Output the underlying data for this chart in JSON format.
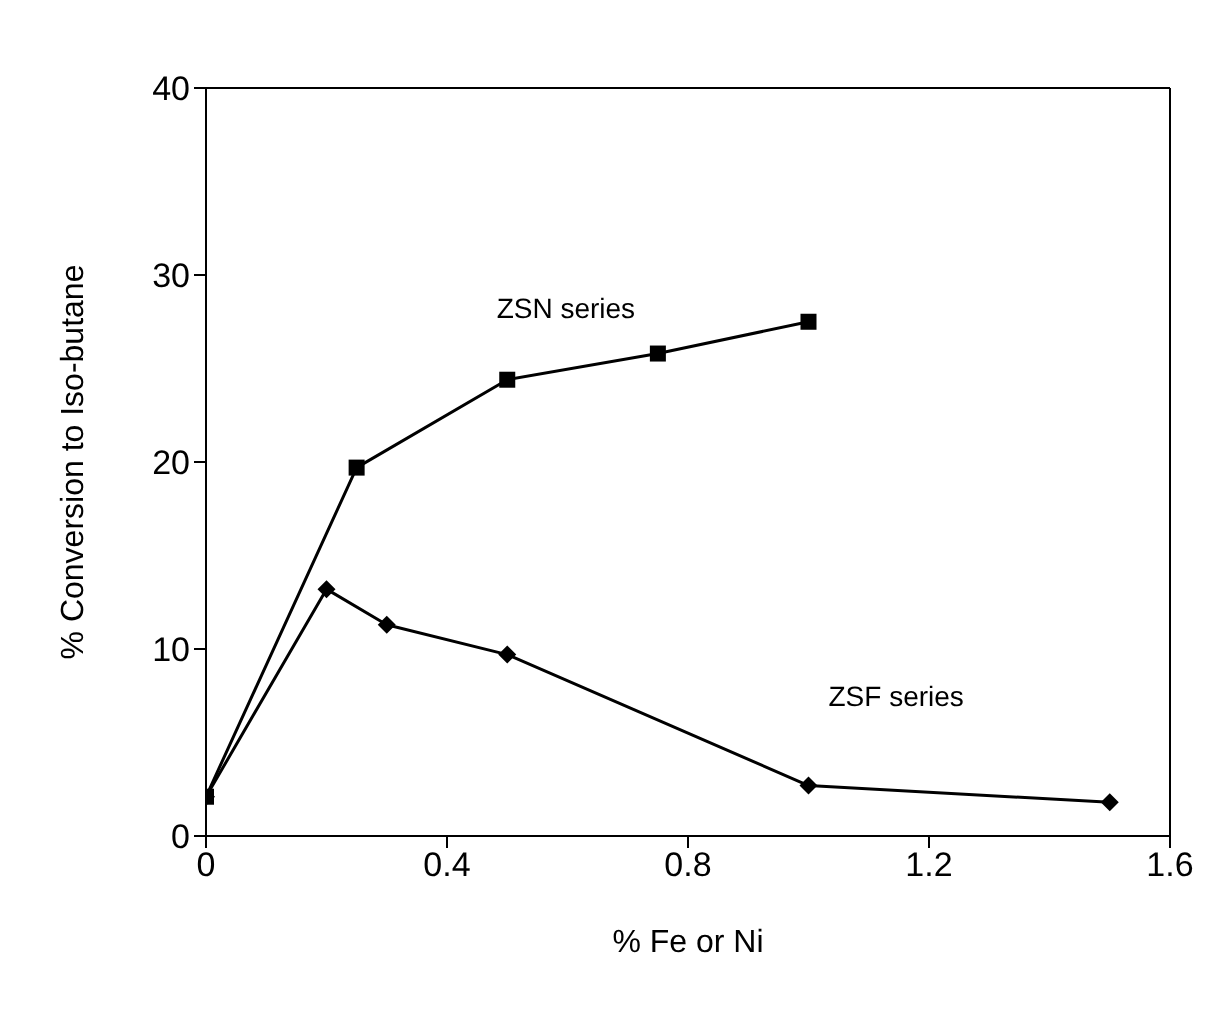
{
  "chart_data": {
    "type": "line",
    "xlabel": "% Fe or Ni",
    "ylabel": "% Conversion to Iso-butane",
    "xlim": [
      0,
      1.6
    ],
    "xticks": [
      0,
      0.4,
      0.8,
      1.2,
      1.6
    ],
    "ylim": [
      0,
      40
    ],
    "yticks": [
      0,
      10,
      20,
      30,
      40
    ],
    "legend": false,
    "series": [
      {
        "name": "ZSN series",
        "color": "#000000",
        "marker": "square",
        "x": [
          0,
          0.25,
          0.5,
          0.75,
          1.0
        ],
        "values": [
          2.1,
          19.7,
          24.4,
          25.8,
          27.5
        ]
      },
      {
        "name": "ZSF series",
        "color": "#000000",
        "marker": "diamond",
        "x": [
          0,
          0.2,
          0.3,
          0.5,
          1.0,
          1.5
        ],
        "values": [
          2.1,
          13.2,
          11.3,
          9.7,
          2.7,
          1.8
        ]
      }
    ]
  }
}
